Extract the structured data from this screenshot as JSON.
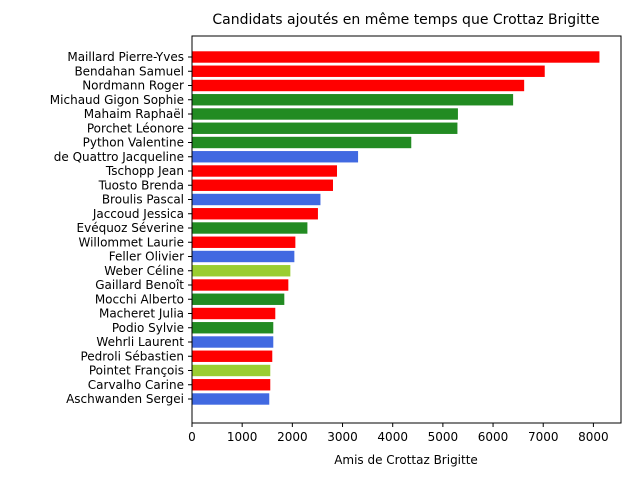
{
  "chart_data": {
    "type": "bar",
    "orientation": "horizontal",
    "title": "Candidats ajoutés en même temps que Crottaz Brigitte",
    "xlabel": "Amis de Crottaz Brigitte",
    "ylabel": "",
    "xlim": [
      0,
      8550
    ],
    "xticks": [
      0,
      1000,
      2000,
      3000,
      4000,
      5000,
      6000,
      7000,
      8000
    ],
    "grid": false,
    "categories": [
      "Maillard Pierre-Yves",
      "Bendahan Samuel",
      "Nordmann Roger",
      "Michaud Gigon Sophie",
      "Mahaim Raphaël",
      "Porchet Léonore",
      "Python Valentine",
      "de Quattro Jacqueline",
      "Tschopp Jean",
      "Tuosto Brenda",
      "Broulis Pascal",
      "Jaccoud Jessica",
      "Evéquoz Séverine",
      "Willommet Laurie",
      "Feller Olivier",
      "Weber Céline",
      "Gaillard Benoît",
      "Mocchi Alberto",
      "Macheret Julia",
      "Podio Sylvie",
      "Wehrli Laurent",
      "Pedroli Sébastien",
      "Pointet François",
      "Carvalho Carine",
      "Aschwanden Sergei"
    ],
    "values": [
      8120,
      7030,
      6620,
      6400,
      5300,
      5290,
      4370,
      3310,
      2890,
      2810,
      2560,
      2510,
      2300,
      2060,
      2040,
      1960,
      1920,
      1840,
      1660,
      1620,
      1620,
      1600,
      1560,
      1560,
      1540
    ],
    "colors": [
      "#ff0000",
      "#ff0000",
      "#ff0000",
      "#228b22",
      "#228b22",
      "#228b22",
      "#228b22",
      "#4169e1",
      "#ff0000",
      "#ff0000",
      "#4169e1",
      "#ff0000",
      "#228b22",
      "#ff0000",
      "#4169e1",
      "#9acd32",
      "#ff0000",
      "#228b22",
      "#ff0000",
      "#228b22",
      "#4169e1",
      "#ff0000",
      "#9acd32",
      "#ff0000",
      "#4169e1"
    ]
  }
}
